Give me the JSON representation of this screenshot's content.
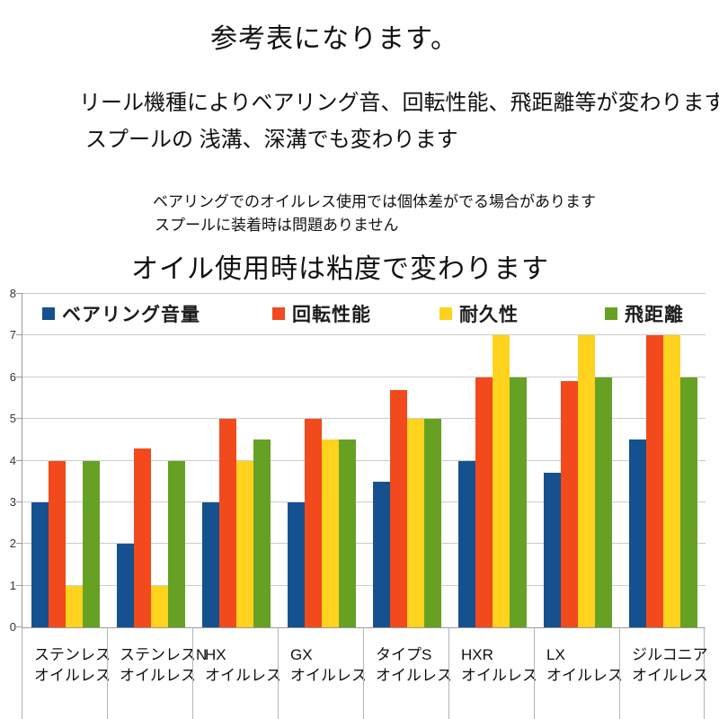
{
  "header": {
    "title": "参考表になります。",
    "line1": "リール機種によりベアリング音、回転性能、飛距離等が変わります。",
    "line2": "スプールの 浅溝、深溝でも変わります",
    "note1": "ベアリングでのオイルレス使用では個体差がでる場合があります",
    "note2": "スプールに装着時は問題ありません",
    "subtitle": "オイル使用時は粘度で変わります"
  },
  "chart_data": {
    "type": "bar",
    "title": "",
    "categories": [
      "ステンレス",
      "ステンレスN",
      "HX",
      "GX",
      "タイプS",
      "HXR",
      "LX",
      "ジルコニア"
    ],
    "category_sublabel": "オイルレス",
    "series": [
      {
        "name": "ベアリング音量",
        "color": "#15518F",
        "values": [
          3,
          2,
          3,
          3,
          3.5,
          4,
          3.7,
          4.5
        ]
      },
      {
        "name": "回転性能",
        "color": "#F24A1C",
        "values": [
          4,
          4.3,
          5,
          5,
          5.7,
          6,
          5.9,
          7
        ]
      },
      {
        "name": "耐久性",
        "color": "#FFD21E",
        "values": [
          1,
          1,
          4,
          4.5,
          5,
          7,
          7,
          7
        ]
      },
      {
        "name": "飛距離",
        "color": "#67A123",
        "values": [
          4,
          4,
          4.5,
          4.5,
          5,
          6,
          6,
          6
        ]
      }
    ],
    "ylabel": "",
    "xlabel": "",
    "ylim": [
      0,
      8
    ],
    "yticks": [
      0,
      1,
      2,
      3,
      4,
      5,
      6,
      7,
      8
    ],
    "grid": true,
    "legend_position": "top",
    "axis_color": "#9a9a9a",
    "gridline_color": "#cccccc",
    "divider_color": "#b5b5b5"
  }
}
